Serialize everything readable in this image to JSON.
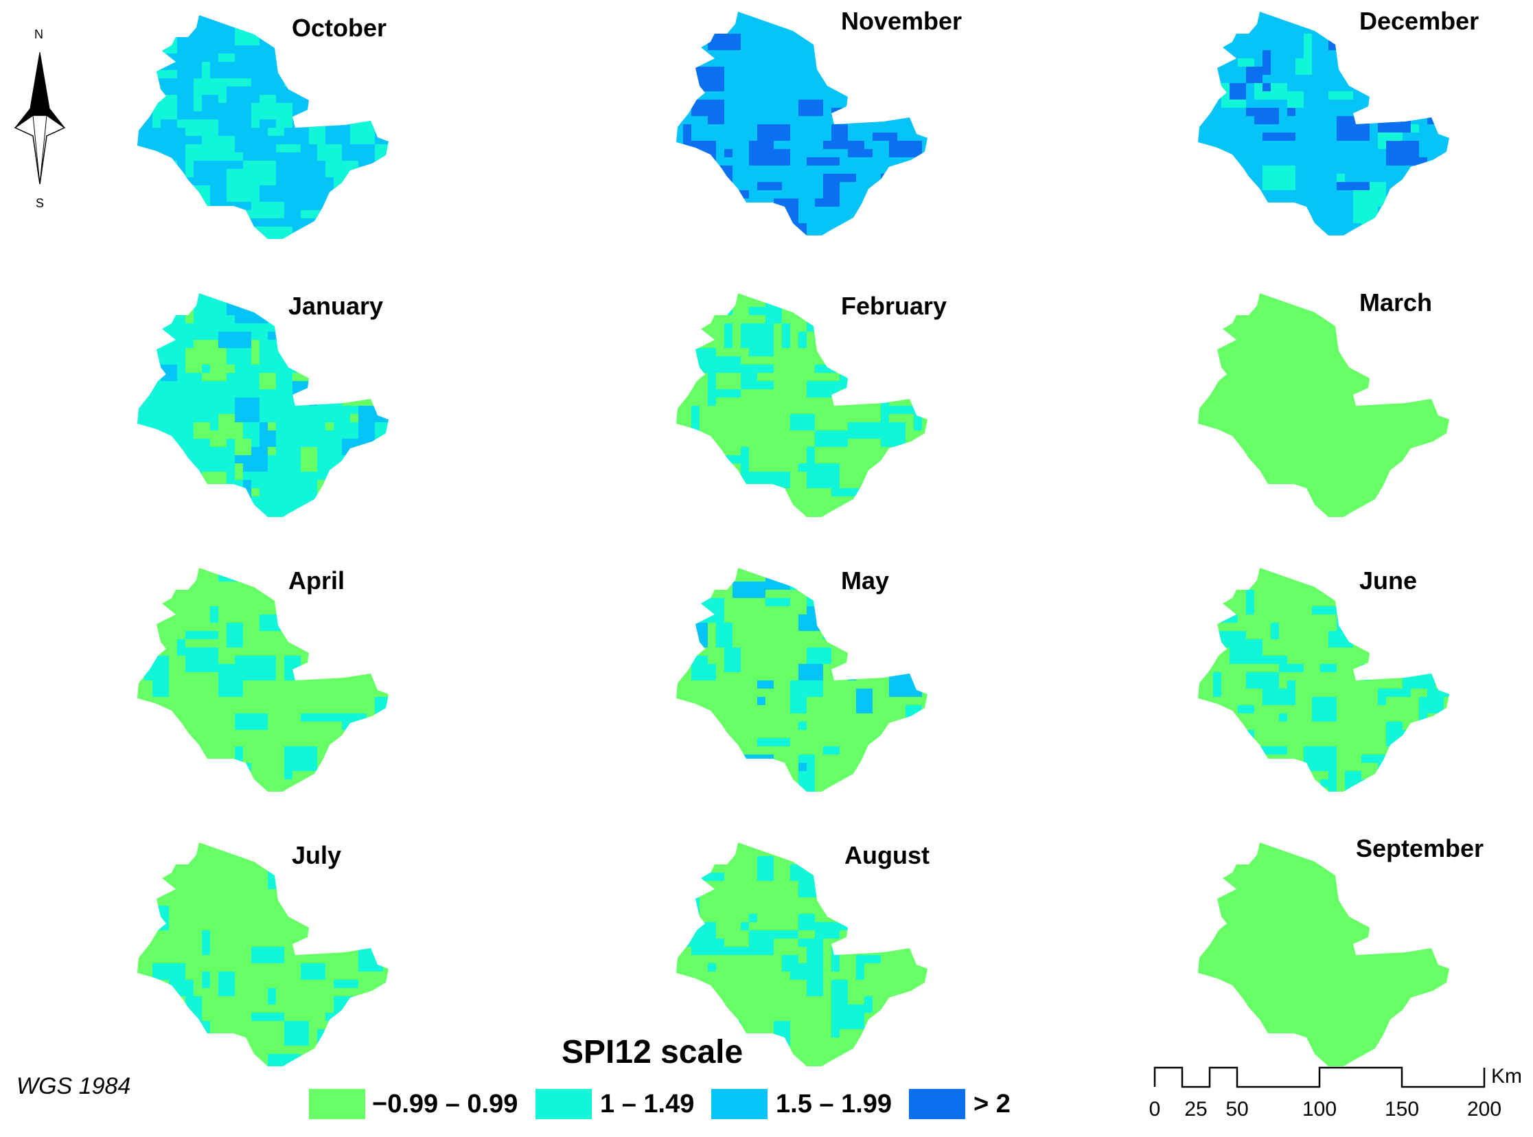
{
  "north_arrow": {
    "north_label": "N",
    "south_label": "S",
    "icon": "north-arrow-icon"
  },
  "crs": "WGS 1984",
  "legend": {
    "title": "SPI12 scale",
    "items": [
      {
        "label": "−0.99 – 0.99",
        "color": "#66ff66"
      },
      {
        "label": "1 – 1.49",
        "color": "#11f5d8"
      },
      {
        "label": "1.5 – 1.99",
        "color": "#06c3f8"
      },
      {
        "label": "> 2",
        "color": "#0a6ff0"
      }
    ]
  },
  "scale_bar": {
    "unit": "Km",
    "ticks": [
      "0",
      "25",
      "50",
      "100",
      "150",
      "200"
    ]
  },
  "panels": [
    {
      "month": "October",
      "base": "#06c3f8",
      "dominant_class": "1.5 – 1.99",
      "secondary": [
        "#11f5d8"
      ]
    },
    {
      "month": "November",
      "base": "#06c3f8",
      "dominant_class": "1.5 – 1.99",
      "secondary": [
        "#0a6ff0"
      ]
    },
    {
      "month": "December",
      "base": "#06c3f8",
      "dominant_class": "1.5 – 1.99",
      "secondary": [
        "#11f5d8",
        "#0a6ff0"
      ]
    },
    {
      "month": "January",
      "base": "#11f5d8",
      "dominant_class": "1 – 1.49",
      "secondary": [
        "#66ff66",
        "#06c3f8"
      ]
    },
    {
      "month": "February",
      "base": "#66ff66",
      "dominant_class": "−0.99 – 0.99",
      "secondary": [
        "#11f5d8"
      ]
    },
    {
      "month": "March",
      "base": "#66ff66",
      "dominant_class": "−0.99 – 0.99",
      "secondary": []
    },
    {
      "month": "April",
      "base": "#66ff66",
      "dominant_class": "−0.99 – 0.99",
      "secondary": [
        "#11f5d8"
      ]
    },
    {
      "month": "May",
      "base": "#66ff66",
      "dominant_class": "−0.99 – 0.99",
      "secondary": [
        "#11f5d8",
        "#06c3f8"
      ]
    },
    {
      "month": "June",
      "base": "#66ff66",
      "dominant_class": "−0.99 – 0.99",
      "secondary": [
        "#11f5d8"
      ]
    },
    {
      "month": "July",
      "base": "#66ff66",
      "dominant_class": "−0.99 – 0.99",
      "secondary": [
        "#11f5d8"
      ]
    },
    {
      "month": "August",
      "base": "#66ff66",
      "dominant_class": "−0.99 – 0.99",
      "secondary": [
        "#11f5d8"
      ]
    },
    {
      "month": "September",
      "base": "#66ff66",
      "dominant_class": "−0.99 – 0.99",
      "secondary": []
    }
  ]
}
